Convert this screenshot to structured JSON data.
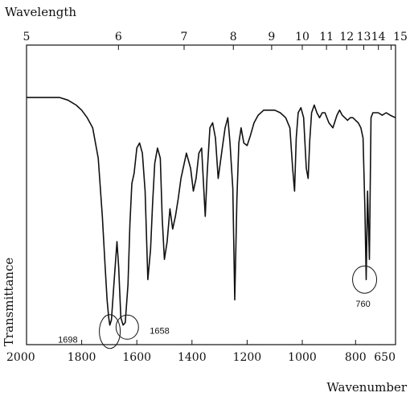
{
  "chart_data": {
    "type": "line",
    "title": "",
    "top_axis": {
      "label": "Wavelength",
      "ticks": [
        "5",
        "6",
        "7",
        "8",
        "9",
        "10",
        "11",
        "12",
        "13",
        "14",
        "15"
      ]
    },
    "bottom_axis": {
      "label": "Wavenumber",
      "ticks": [
        "2000",
        "1800",
        "1600",
        "1400",
        "1200",
        "1000",
        "800",
        "650"
      ]
    },
    "ylabel": "Transmittance",
    "xlim": [
      2000,
      650
    ],
    "ylim": [
      0,
      100
    ],
    "series": [
      {
        "x": [
          2000,
          1960,
          1920,
          1880,
          1850,
          1820,
          1800,
          1780,
          1760,
          1740,
          1725,
          1715,
          1708,
          1702,
          1698,
          1692,
          1682,
          1672,
          1666,
          1658,
          1650,
          1642,
          1632,
          1625,
          1618,
          1610,
          1600,
          1590,
          1580,
          1570,
          1560,
          1550,
          1543,
          1535,
          1525,
          1515,
          1508,
          1500,
          1490,
          1480,
          1470,
          1460,
          1450,
          1440,
          1430,
          1420,
          1405,
          1395,
          1385,
          1375,
          1365,
          1352,
          1345,
          1335,
          1325,
          1315,
          1305,
          1290,
          1280,
          1270,
          1262,
          1252,
          1245,
          1237,
          1230,
          1222,
          1212,
          1200,
          1188,
          1175,
          1160,
          1140,
          1120,
          1100,
          1080,
          1060,
          1045,
          1035,
          1028,
          1022,
          1015,
          1005,
          995,
          985,
          978,
          972,
          965,
          955,
          945,
          935,
          925,
          915,
          900,
          885,
          870,
          860,
          850,
          840,
          830,
          820,
          810,
          800,
          790,
          780,
          772,
          765,
          760,
          755,
          748,
          742,
          735,
          725,
          715,
          700,
          685,
          670,
          650
        ],
        "y": [
          92,
          92,
          92,
          92,
          91,
          89,
          87,
          84,
          80,
          68,
          45,
          25,
          12,
          5,
          2,
          4,
          20,
          35,
          25,
          5,
          2,
          3,
          18,
          42,
          58,
          62,
          72,
          74,
          70,
          55,
          20,
          32,
          50,
          66,
          72,
          68,
          44,
          28,
          35,
          48,
          40,
          45,
          52,
          60,
          65,
          70,
          64,
          55,
          60,
          70,
          72,
          45,
          62,
          80,
          82,
          76,
          60,
          72,
          80,
          84,
          74,
          56,
          12,
          52,
          74,
          80,
          74,
          73,
          77,
          82,
          85,
          87,
          87,
          87,
          86,
          84,
          80,
          64,
          55,
          76,
          86,
          88,
          84,
          64,
          60,
          75,
          86,
          89,
          86,
          84,
          86,
          86,
          82,
          80,
          85,
          87,
          85,
          84,
          83,
          84,
          84,
          83,
          82,
          80,
          76,
          48,
          20,
          55,
          28,
          84,
          86,
          86,
          86,
          85,
          86,
          85,
          84
        ]
      }
    ],
    "annotations": [
      {
        "label": "1698",
        "x": 1698
      },
      {
        "label": "1658",
        "x": 1658
      },
      {
        "label": "760",
        "x": 760
      }
    ]
  }
}
